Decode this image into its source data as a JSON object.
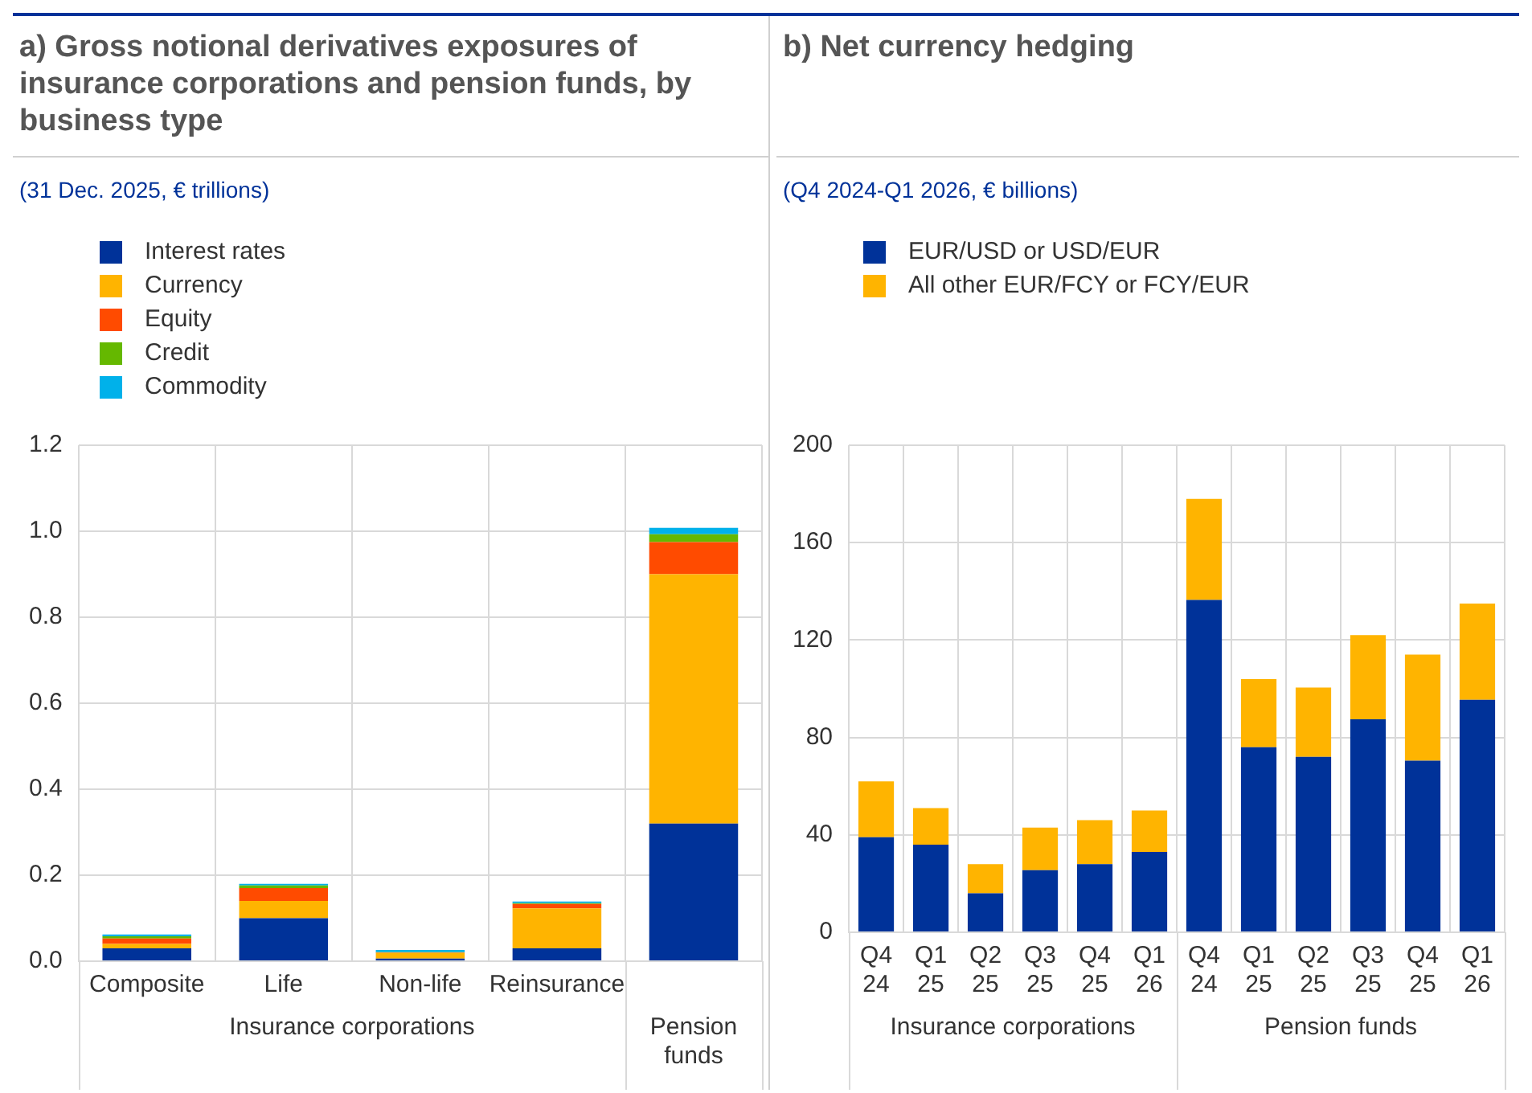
{
  "chart_data": [
    {
      "type": "bar",
      "title": "a) Gross notional derivatives exposures of insurance corporations and pension funds, by business type",
      "subtitle": "(31 Dec. 2025, € trillions)",
      "categories": [
        "Composite",
        "Life",
        "Non-life",
        "Reinsurance",
        null
      ],
      "stacked": true,
      "grid": true,
      "legend": "top left",
      "ylim": [
        0,
        1.2
      ],
      "yticks": [
        {
          "value": 0,
          "label": "0.0"
        },
        {
          "value": 0.2,
          "label": "0.2"
        },
        {
          "value": 0.4,
          "label": "0.4"
        },
        {
          "value": 0.6,
          "label": "0.6"
        },
        {
          "value": 0.8,
          "label": "0.8"
        },
        {
          "value": 1,
          "label": "1.0"
        },
        {
          "value": 1.2,
          "label": "1.2"
        }
      ],
      "annotations": [
        "Insurance corporations",
        "Pension funds"
      ],
      "series": [
        {
          "name": "Interest rates",
          "color": "#003299",
          "values": [
            0.03,
            0.1,
            0.006,
            0.03,
            0.32
          ]
        },
        {
          "name": "Currency",
          "color": "#ffb400",
          "values": [
            0.01,
            0.04,
            0.013,
            0.093,
            0.58
          ]
        },
        {
          "name": "Equity",
          "color": "#ff4b00",
          "values": [
            0.013,
            0.03,
            0.001,
            0.01,
            0.075
          ]
        },
        {
          "name": "Credit",
          "color": "#65b800",
          "values": [
            0.005,
            0.006,
            0.001,
            0.002,
            0.018
          ]
        },
        {
          "name": "Commodity",
          "color": "#00b1ea",
          "values": [
            0.004,
            0.004,
            0.005,
            0.004,
            0.015
          ]
        }
      ]
    },
    {
      "type": "bar",
      "title": "b) Net currency hedging",
      "subtitle": "(Q4 2024-Q1 2026, € billions)",
      "categories": [
        "Q4 24",
        "Q1 25",
        "Q2 25",
        "Q3 25",
        "Q4 25",
        "Q1 26",
        "Q4 24",
        "Q1 25",
        "Q2 25",
        "Q3 25",
        "Q4 25",
        "Q1 26"
      ],
      "stacked": true,
      "grid": true,
      "legend": "top left",
      "ylim": [
        0,
        200
      ],
      "yticks": [
        0,
        40,
        80,
        120,
        160,
        200
      ],
      "annotations": [
        "Insurance corporations",
        "Pension funds"
      ],
      "series": [
        {
          "name": "EUR/USD or USD/EUR",
          "color": "#003299",
          "values": [
            39,
            36,
            16,
            25.5,
            28,
            33,
            136.5,
            76,
            72,
            87.5,
            70.5,
            95.5
          ]
        },
        {
          "name": "All other EUR/FCY or FCY/EUR",
          "color": "#ffb400",
          "values": [
            23,
            15,
            12,
            17.5,
            18,
            17,
            41.5,
            28,
            28.5,
            34.5,
            43.5,
            39.5
          ]
        }
      ]
    }
  ]
}
